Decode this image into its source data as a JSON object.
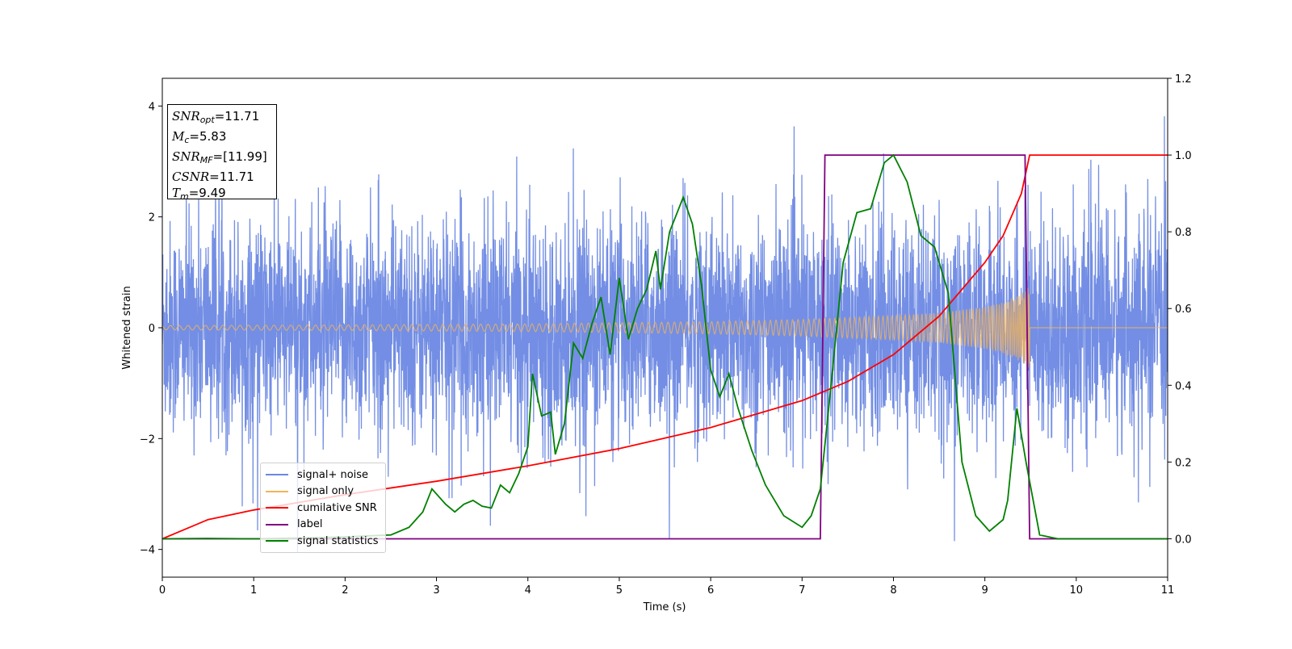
{
  "chart_data": {
    "type": "line",
    "xlabel": "Time (s)",
    "ylabel": "Whitened strain",
    "xlim": [
      0,
      11
    ],
    "ylim": [
      -4.5,
      4.5
    ],
    "ylim_right": [
      -0.1,
      1.2
    ],
    "x_ticks": [
      "0",
      "1",
      "2",
      "3",
      "4",
      "5",
      "6",
      "7",
      "8",
      "9",
      "10",
      "11"
    ],
    "y_ticks": [
      "−4",
      "−2",
      "0",
      "2",
      "4"
    ],
    "y_ticks_right": [
      "0.0",
      "0.2",
      "0.4",
      "0.6",
      "0.8",
      "1.0",
      "1.2"
    ],
    "grid": false,
    "legend_position": "lower-left",
    "colors": {
      "signal_noise": "#6b88e3",
      "signal_only": "#f2b35a",
      "cumulative_snr": "#ff0000",
      "label": "#800080",
      "signal_statistics": "#008000"
    },
    "series": [
      {
        "name": "signal+ noise",
        "axis": "left",
        "description_level": "noise amplitude approx ±2 (whitened), spikes to ±4",
        "noise_envelope": {
          "typical_abs": 1.6,
          "max": 4.2,
          "min": -4.05
        }
      },
      {
        "name": "signal only",
        "axis": "left",
        "envelope": {
          "x": [
            0,
            1,
            2,
            3,
            4,
            5,
            6,
            7,
            8,
            8.5,
            9,
            9.2,
            9.4,
            9.49,
            9.5,
            11
          ],
          "amp": [
            0.04,
            0.045,
            0.05,
            0.06,
            0.07,
            0.09,
            0.11,
            0.15,
            0.22,
            0.27,
            0.38,
            0.46,
            0.62,
            0.8,
            0,
            0
          ]
        }
      },
      {
        "name": "cumilative SNR",
        "axis": "right",
        "x": [
          0,
          0.5,
          1,
          2,
          3,
          4,
          5,
          6,
          7,
          7.5,
          8,
          8.5,
          9,
          9.2,
          9.4,
          9.49,
          9.5,
          11
        ],
        "y": [
          0.0,
          0.05,
          0.075,
          0.115,
          0.15,
          0.19,
          0.235,
          0.29,
          0.36,
          0.41,
          0.48,
          0.58,
          0.72,
          0.79,
          0.9,
          1.0,
          1.0,
          1.0
        ]
      },
      {
        "name": "label",
        "axis": "right",
        "x": [
          0,
          7.2,
          7.25,
          9.44,
          9.49,
          11
        ],
        "y": [
          0,
          0,
          1,
          1,
          0,
          0
        ]
      },
      {
        "name": "signal statistics",
        "axis": "right",
        "x": [
          0,
          0.5,
          1,
          1.5,
          2,
          2.5,
          2.7,
          2.85,
          2.95,
          3.1,
          3.2,
          3.3,
          3.4,
          3.5,
          3.6,
          3.7,
          3.8,
          3.9,
          4.0,
          4.05,
          4.15,
          4.25,
          4.3,
          4.4,
          4.5,
          4.6,
          4.7,
          4.8,
          4.9,
          5.0,
          5.1,
          5.2,
          5.3,
          5.4,
          5.45,
          5.55,
          5.7,
          5.8,
          5.9,
          6.0,
          6.1,
          6.2,
          6.3,
          6.45,
          6.6,
          6.8,
          7.0,
          7.1,
          7.2,
          7.3,
          7.45,
          7.6,
          7.75,
          7.9,
          8.0,
          8.15,
          8.3,
          8.45,
          8.6,
          8.75,
          8.9,
          9.05,
          9.2,
          9.25,
          9.35,
          9.45,
          9.6,
          9.8,
          10,
          11
        ],
        "y": [
          0.0,
          0.001,
          0.0,
          0.002,
          0.005,
          0.01,
          0.03,
          0.07,
          0.13,
          0.09,
          0.07,
          0.09,
          0.1,
          0.085,
          0.08,
          0.14,
          0.12,
          0.17,
          0.24,
          0.43,
          0.32,
          0.33,
          0.22,
          0.3,
          0.51,
          0.47,
          0.56,
          0.63,
          0.48,
          0.68,
          0.52,
          0.6,
          0.65,
          0.75,
          0.65,
          0.8,
          0.89,
          0.82,
          0.66,
          0.44,
          0.37,
          0.43,
          0.34,
          0.23,
          0.14,
          0.06,
          0.03,
          0.06,
          0.13,
          0.36,
          0.72,
          0.85,
          0.86,
          0.98,
          1.0,
          0.93,
          0.79,
          0.76,
          0.64,
          0.2,
          0.06,
          0.02,
          0.05,
          0.1,
          0.34,
          0.2,
          0.01,
          0.0,
          0.0,
          0.0
        ]
      }
    ]
  },
  "info_box": {
    "snr_opt_label": "SNR",
    "snr_opt_sub": "opt",
    "snr_opt_value": "=11.71",
    "mc_label": "M",
    "mc_sub": "c",
    "mc_value": "=5.83",
    "snr_mf_label": "SNR",
    "snr_mf_sub": "MF",
    "snr_mf_value": "=[11.99]",
    "csnr_label": "CSNR",
    "csnr_value": "=11.71",
    "tm_label": "T",
    "tm_sub": "m",
    "tm_value": "=9.49"
  },
  "legend": {
    "items": [
      {
        "label": "signal+ noise",
        "color": "#6b88e3"
      },
      {
        "label": "signal only",
        "color": "#f2b35a"
      },
      {
        "label": "cumilative SNR",
        "color": "#ff0000"
      },
      {
        "label": "label",
        "color": "#800080"
      },
      {
        "label": "signal statistics",
        "color": "#008000"
      }
    ]
  }
}
